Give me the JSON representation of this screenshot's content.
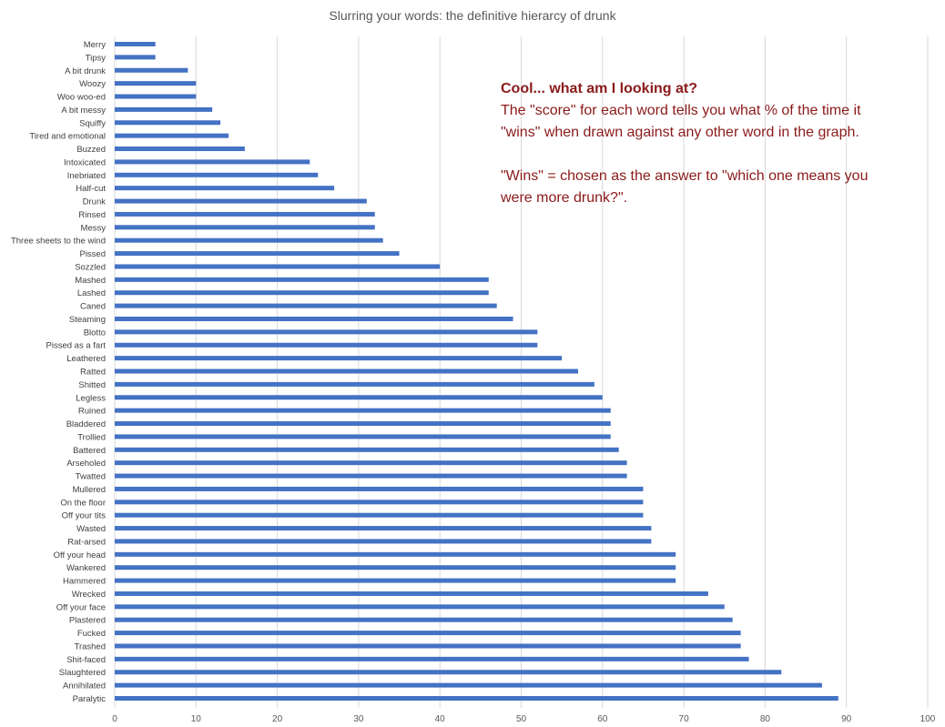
{
  "chart_data": {
    "type": "bar",
    "orientation": "horizontal",
    "title": "Slurring your words: the definitive hierarcy of drunk",
    "xlim": [
      0,
      100
    ],
    "x_ticks": [
      0,
      10,
      20,
      30,
      40,
      50,
      60,
      70,
      80,
      90,
      100
    ],
    "grid": "vertical",
    "bar_color": "#4472c4",
    "categories": [
      "Merry",
      "Tipsy",
      "A bit drunk",
      "Woozy",
      "Woo woo-ed",
      "A bit messy",
      "Squiffy",
      "Tired and emotional",
      "Buzzed",
      "Intoxicated",
      "Inebriated",
      "Half-cut",
      "Drunk",
      "Rinsed",
      "Messy",
      "Three sheets to the wind",
      "Pissed",
      "Sozzled",
      "Mashed",
      "Lashed",
      "Caned",
      "Steaming",
      "Blotto",
      "Pissed as a fart",
      "Leathered",
      "Ratted",
      "Shitted",
      "Legless",
      "Ruined",
      "Bladdered",
      "Trollied",
      "Battered",
      "Arseholed",
      "Twatted",
      "Mullered",
      "On the floor",
      "Off your tits",
      "Wasted",
      "Rat-arsed",
      "Off your head",
      "Wankered",
      "Hammered",
      "Wrecked",
      "Off your face",
      "Plastered",
      "Fucked",
      "Trashed",
      "Shit-faced",
      "Slaughtered",
      "Annihilated",
      "Paralytic"
    ],
    "values": [
      5,
      5,
      9,
      10,
      10,
      12,
      13,
      14,
      16,
      24,
      25,
      27,
      31,
      32,
      32,
      33,
      35,
      40,
      46,
      46,
      47,
      49,
      52,
      52,
      55,
      57,
      59,
      60,
      61,
      61,
      61,
      62,
      63,
      63,
      65,
      65,
      65,
      66,
      66,
      69,
      69,
      69,
      73,
      75,
      76,
      77,
      77,
      78,
      82,
      87,
      89
    ]
  },
  "annotation": {
    "heading": "Cool... what am I looking at?",
    "body": "The \"score\" for each word tells you what % of the time it \"wins\" when drawn against any other word in the graph.",
    "definition": "\"Wins\" = chosen as the answer to \"which one means you were more drunk?\".",
    "color": "#8b1a1a"
  }
}
